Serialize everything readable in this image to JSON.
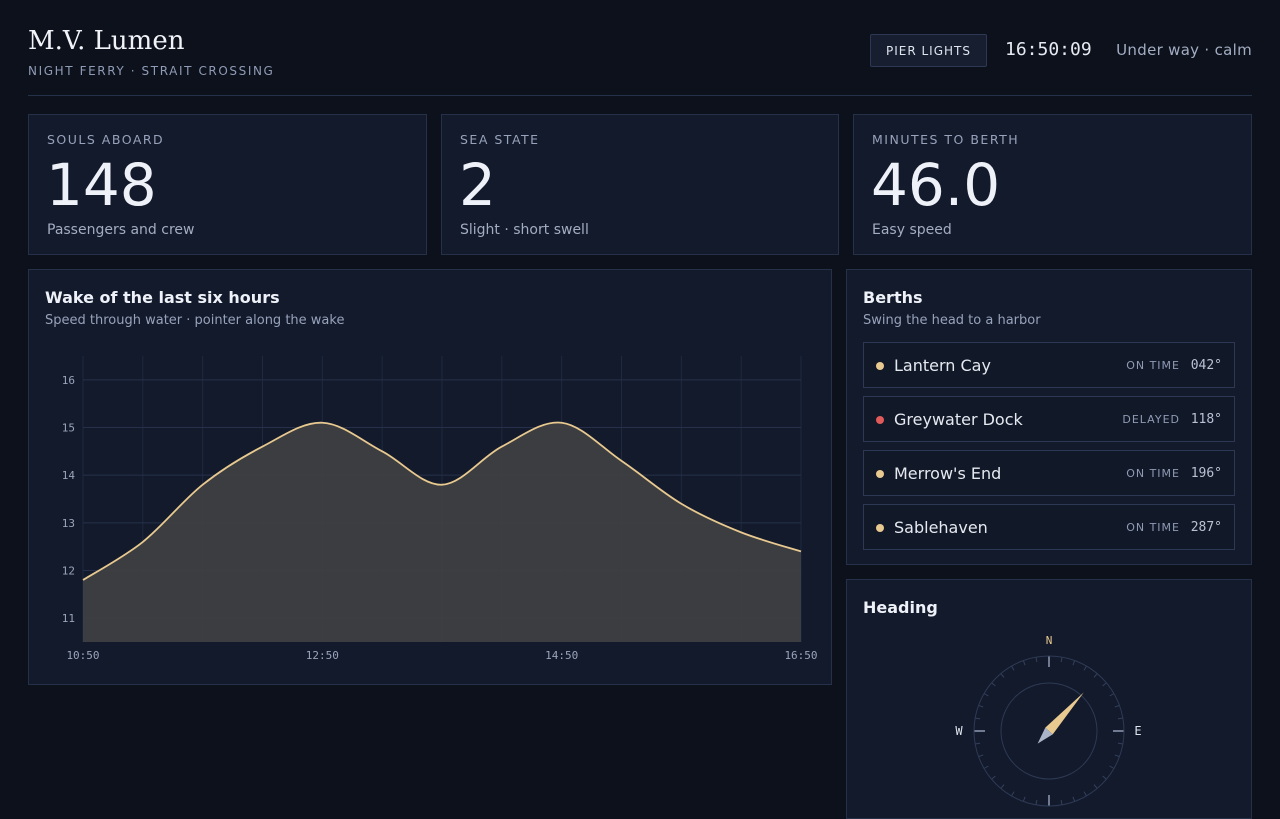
{
  "header": {
    "vessel_name": "M.V. Lumen",
    "vessel_subtitle": "NIGHT FERRY · STRAIT CROSSING",
    "pier_lights_label": "PIER LIGHTS",
    "clock": "16:50:09",
    "status": "Under way · calm"
  },
  "stats": [
    {
      "label": "SOULS ABOARD",
      "value": "148",
      "caption": "Passengers and crew"
    },
    {
      "label": "SEA STATE",
      "value": "2",
      "caption": "Slight · short swell"
    },
    {
      "label": "MINUTES TO BERTH",
      "value": "46.0",
      "caption": "Easy speed"
    }
  ],
  "wake": {
    "title": "Wake of the last six hours",
    "subtitle": "Speed through water · pointer along the wake"
  },
  "chart_data": {
    "type": "area",
    "x": [
      "10:50",
      "11:20",
      "11:50",
      "12:20",
      "12:50",
      "13:20",
      "13:50",
      "14:20",
      "14:50",
      "15:20",
      "15:50",
      "16:20",
      "16:50"
    ],
    "y": [
      11.8,
      12.6,
      13.8,
      14.6,
      15.1,
      14.5,
      13.8,
      14.6,
      15.1,
      14.3,
      13.4,
      12.8,
      12.4
    ],
    "xticks": [
      "10:50",
      "12:50",
      "14:50",
      "16:50"
    ],
    "yticks": [
      11,
      12,
      13,
      14,
      15,
      16
    ],
    "ylim": [
      10.5,
      16.5
    ],
    "line_color": "#e8c98f",
    "fill_color": "#404042",
    "grid": true
  },
  "berths": {
    "title": "Berths",
    "subtitle": "Swing the head to a harbor",
    "items": [
      {
        "name": "Lantern Cay",
        "status": "ON TIME",
        "bearing": "042°",
        "dot_color": "#e8c98f"
      },
      {
        "name": "Greywater Dock",
        "status": "DELAYED",
        "bearing": "118°",
        "dot_color": "#e05a5a"
      },
      {
        "name": "Merrow's End",
        "status": "ON TIME",
        "bearing": "196°",
        "dot_color": "#e8c98f"
      },
      {
        "name": "Sablehaven",
        "status": "ON TIME",
        "bearing": "287°",
        "dot_color": "#e8c98f"
      }
    ]
  },
  "heading": {
    "title": "Heading",
    "north": "N",
    "east": "E",
    "west": "W",
    "degrees": 42
  },
  "colors": {
    "accent": "#e8c98f",
    "alert": "#e05a5a",
    "panel": "#121a2c",
    "background": "#0c111c"
  }
}
